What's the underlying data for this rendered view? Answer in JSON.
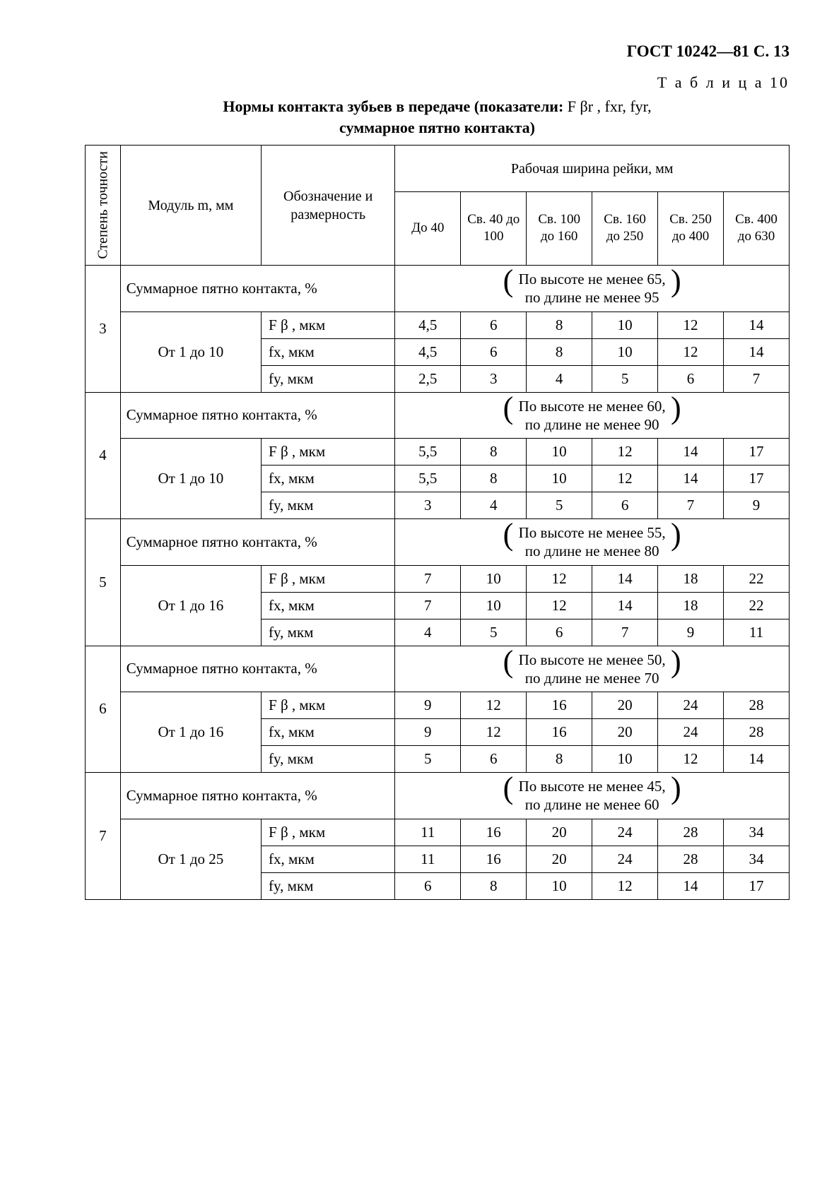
{
  "header": "ГОСТ 10242—81 С. 13",
  "table_number": "Т а б л и ц а 10",
  "caption_line1_prefix": "Нормы контакта зубьев в передаче (показатели: ",
  "caption_line1_params": "F βr , fxr, fyr,",
  "caption_line2": "суммарное пятно контакта)",
  "col_rot": "Степень точности",
  "col_module": "Модуль m, мм",
  "col_param": "Обозначение и размерность",
  "col_width_group": "Рабочая ширина рейки, мм",
  "width_cols": [
    "До 40",
    "Св. 40 до 100",
    "Св. 100 до 160",
    "Св. 160 до 250",
    "Св. 250 до 400",
    "Св. 400 до 630"
  ],
  "contact_label": "Суммарное пятно контакта, %",
  "param_Fb": "F β , мкм",
  "param_fx": "fx, мкм",
  "param_fy": "fy, мкм",
  "groups": [
    {
      "grade": "3",
      "module": "От 1 до 10",
      "note_top": "По высоте не менее 65,",
      "note_bot": "по длине не менее 95",
      "Fb": [
        "4,5",
        "6",
        "8",
        "10",
        "12",
        "14"
      ],
      "fx": [
        "4,5",
        "6",
        "8",
        "10",
        "12",
        "14"
      ],
      "fy": [
        "2,5",
        "3",
        "4",
        "5",
        "6",
        "7"
      ]
    },
    {
      "grade": "4",
      "module": "От 1 до 10",
      "note_top": "По высоте не менее 60,",
      "note_bot": "по длине не менее 90",
      "Fb": [
        "5,5",
        "8",
        "10",
        "12",
        "14",
        "17"
      ],
      "fx": [
        "5,5",
        "8",
        "10",
        "12",
        "14",
        "17"
      ],
      "fy": [
        "3",
        "4",
        "5",
        "6",
        "7",
        "9"
      ]
    },
    {
      "grade": "5",
      "module": "От 1 до 16",
      "note_top": "По высоте не менее 55,",
      "note_bot": "по длине не менее 80",
      "Fb": [
        "7",
        "10",
        "12",
        "14",
        "18",
        "22"
      ],
      "fx": [
        "7",
        "10",
        "12",
        "14",
        "18",
        "22"
      ],
      "fy": [
        "4",
        "5",
        "6",
        "7",
        "9",
        "11"
      ]
    },
    {
      "grade": "6",
      "module": "От 1 до 16",
      "note_top": "По высоте не менее 50,",
      "note_bot": "по длине не менее 70",
      "Fb": [
        "9",
        "12",
        "16",
        "20",
        "24",
        "28"
      ],
      "fx": [
        "9",
        "12",
        "16",
        "20",
        "24",
        "28"
      ],
      "fy": [
        "5",
        "6",
        "8",
        "10",
        "12",
        "14"
      ]
    },
    {
      "grade": "7",
      "module": "От 1 до 25",
      "note_top": "По высоте не менее 45,",
      "note_bot": "по длине не менее 60",
      "Fb": [
        "11",
        "16",
        "20",
        "24",
        "28",
        "34"
      ],
      "fx": [
        "11",
        "16",
        "20",
        "24",
        "28",
        "34"
      ],
      "fy": [
        "6",
        "8",
        "10",
        "12",
        "14",
        "17"
      ]
    }
  ],
  "style": {
    "text_color": "#000000",
    "background": "#ffffff",
    "border_color": "#000000",
    "font_family": "Times New Roman",
    "base_font_pt": 16,
    "col_widths_pct": [
      5,
      20,
      19,
      9.3,
      9.3,
      9.3,
      9.3,
      9.3,
      9.3
    ]
  }
}
